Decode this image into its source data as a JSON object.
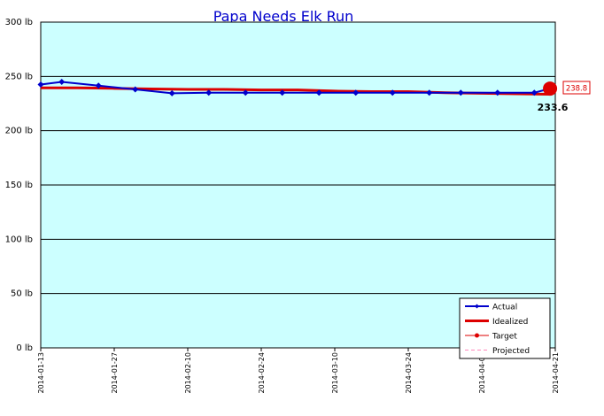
{
  "chart_data": {
    "type": "line",
    "title": "Papa Needs Elk Run",
    "xlabel": "",
    "ylabel": "",
    "y_unit": "lb",
    "ylim": [
      0,
      300
    ],
    "y_ticks": [
      0,
      50,
      100,
      150,
      200,
      250,
      300
    ],
    "y_tick_labels": [
      "0 lb",
      "50 lb",
      "100 lb",
      "150 lb",
      "200 lb",
      "250 lb",
      "300 lb"
    ],
    "x_range": [
      "2014-01-13",
      "2014-04-21"
    ],
    "x_tick_labels": [
      "2014-01-13",
      "2014-01-27",
      "2014-02-10",
      "2014-02-24",
      "2014-03-10",
      "2014-03-24",
      "2014-04-07",
      "2014-04-21"
    ],
    "grid": "horizontal",
    "legend_position": "bottom-right",
    "colors": {
      "plot_background": "#ccffff",
      "actual": "#0000cc",
      "idealized": "#dd0000",
      "target": "#dd0000",
      "projected": "#ff88bb",
      "title": "#0000cc"
    },
    "series": [
      {
        "name": "Actual",
        "x": [
          "2014-01-13",
          "2014-01-17",
          "2014-01-24",
          "2014-01-31",
          "2014-02-07",
          "2014-02-14",
          "2014-02-21",
          "2014-02-28",
          "2014-03-07",
          "2014-03-14",
          "2014-03-21",
          "2014-03-28",
          "2014-04-03",
          "2014-04-10",
          "2014-04-17",
          "2014-04-20"
        ],
        "values": [
          242.5,
          245,
          241.5,
          238,
          234.5,
          235,
          235,
          235,
          235,
          235,
          235,
          235,
          235,
          235,
          235,
          238.8
        ]
      },
      {
        "name": "Idealized",
        "x": [
          "2014-01-13",
          "2014-01-20",
          "2014-01-27",
          "2014-02-03",
          "2014-02-10",
          "2014-02-17",
          "2014-02-24",
          "2014-03-03",
          "2014-03-10",
          "2014-03-17",
          "2014-03-24",
          "2014-03-31",
          "2014-04-07",
          "2014-04-14",
          "2014-04-20"
        ],
        "values": [
          239.5,
          239.5,
          239,
          238.5,
          238,
          238,
          237.5,
          237.5,
          236.5,
          236,
          236,
          235,
          234.5,
          234,
          233.6
        ]
      }
    ],
    "legend_entries": [
      "Actual",
      "Idealized",
      "Target",
      "Projected"
    ],
    "annotations": {
      "current_value": "238.8",
      "idealized_value": "233.6"
    }
  }
}
